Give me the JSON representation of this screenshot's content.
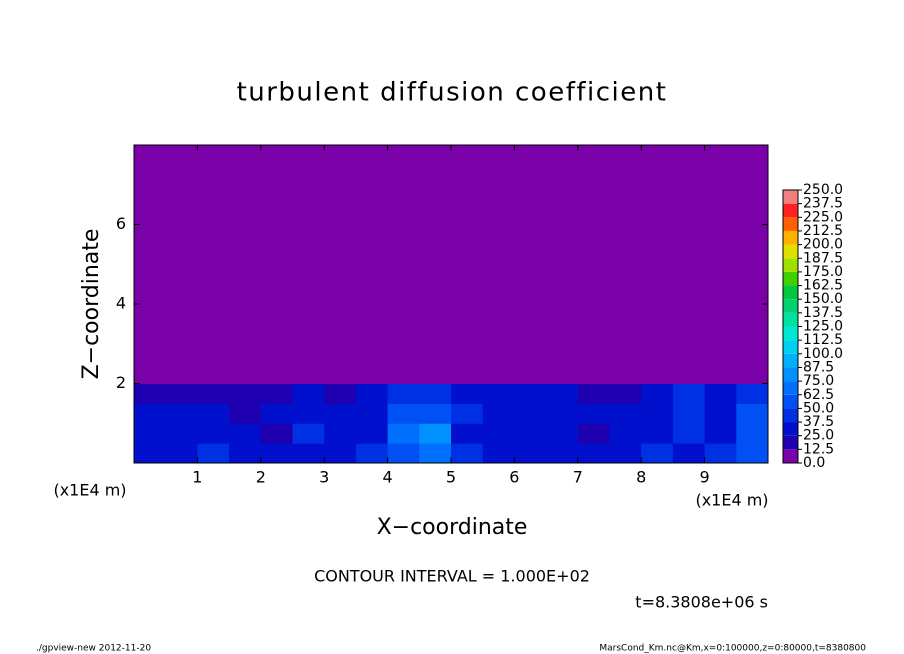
{
  "chart_data": {
    "type": "contour",
    "title": "turbulent diffusion coefficient",
    "xlabel": "X−coordinate",
    "ylabel": "Z−coordinate",
    "xunit_left": "(x1E4 m)",
    "xunit_right": "(x1E4 m)",
    "xlim": [
      0,
      10
    ],
    "ylim": [
      0,
      8
    ],
    "xticks": [
      1,
      2,
      3,
      4,
      5,
      6,
      7,
      8,
      9
    ],
    "yticks": [
      2,
      4,
      6
    ],
    "xbins": [
      0,
      0.5,
      1,
      1.5,
      2,
      2.5,
      3,
      3.5,
      4,
      4.5,
      5,
      5.5,
      6,
      6.5,
      7,
      7.5,
      8,
      8.5,
      9,
      9.5,
      10
    ],
    "zbins": [
      0,
      0.5,
      1,
      1.5,
      2,
      8
    ],
    "field": [
      [
        30,
        25,
        40,
        35,
        25,
        30,
        35,
        45,
        60,
        70,
        40,
        30,
        25,
        35,
        30,
        25,
        40,
        35,
        45,
        60
      ],
      [
        25,
        30,
        30,
        25,
        20,
        40,
        30,
        35,
        65,
        75,
        35,
        25,
        30,
        25,
        20,
        25,
        35,
        40,
        30,
        55
      ],
      [
        30,
        30,
        25,
        20,
        35,
        30,
        25,
        30,
        55,
        60,
        40,
        35,
        30,
        25,
        30,
        25,
        30,
        45,
        35,
        60
      ],
      [
        20,
        20,
        15,
        15,
        20,
        35,
        20,
        25,
        40,
        45,
        35,
        30,
        30,
        25,
        20,
        20,
        25,
        40,
        25,
        45
      ],
      [
        5,
        5,
        5,
        5,
        5,
        5,
        5,
        5,
        5,
        5,
        5,
        5,
        5,
        5,
        5,
        5,
        5,
        5,
        5,
        5
      ]
    ],
    "levels": [
      {
        "value": 0,
        "label": "0.0"
      },
      12.5,
      {
        "value": 25,
        "label": "25.0"
      },
      37.5,
      {
        "value": 50,
        "label": "50.0"
      },
      62.5,
      {
        "value": 75,
        "label": "75.0"
      },
      87.5,
      {
        "value": 100,
        "label": "100.0"
      },
      112.5,
      {
        "value": 125,
        "label": "125.0"
      },
      137.5,
      {
        "value": 150,
        "label": "150.0"
      },
      162.5,
      {
        "value": 175,
        "label": "175.0"
      },
      187.5,
      {
        "value": 200,
        "label": "200.0"
      },
      212.5,
      {
        "value": 225,
        "label": "225.0"
      },
      237.5,
      {
        "value": 250,
        "label": "250.0"
      }
    ],
    "colors": [
      "#7a00a8",
      "#1e00b0",
      "#0010cc",
      "#0030e4",
      "#0050f4",
      "#0070ff",
      "#0090ff",
      "#00b0ff",
      "#00d0f0",
      "#00e8d0",
      "#00e0a0",
      "#00d070",
      "#00c840",
      "#40d000",
      "#a0e000",
      "#e0e000",
      "#ffb000",
      "#ff6000",
      "#ff2020",
      "#f08080"
    ],
    "contour_interval": "CONTOUR INTERVAL = 1.000E+02",
    "time": "t=8.3808e+06 s",
    "footer_left": "./gpview-new   2012-11-20",
    "footer_right": "MarsCond_Km.nc@Km,x=0:100000,z=0:80000,t=8380800"
  }
}
